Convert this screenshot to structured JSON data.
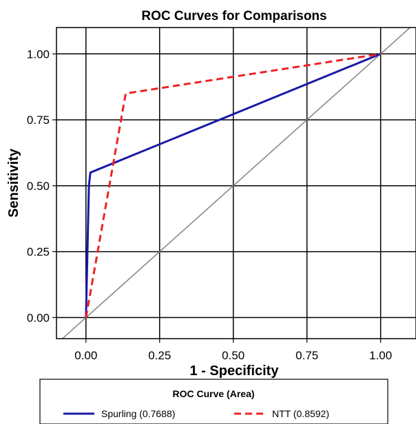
{
  "chart_data": {
    "type": "line",
    "title": "ROC Curves for Comparisons",
    "xlabel": "1 - Specificity",
    "ylabel": "Sensitivity",
    "xlim": [
      -0.1,
      1.12
    ],
    "ylim": [
      -0.08,
      1.1
    ],
    "xticks": [
      0.0,
      0.25,
      0.5,
      0.75,
      1.0
    ],
    "yticks": [
      0.0,
      0.25,
      0.5,
      0.75,
      1.0
    ],
    "xtick_labels": [
      "0.00",
      "0.25",
      "0.50",
      "0.75",
      "1.00"
    ],
    "ytick_labels": [
      "0.00",
      "0.25",
      "0.50",
      "0.75",
      "1.00"
    ],
    "grid": true,
    "legend": {
      "title": "ROC Curve (Area)",
      "placement": "bottom"
    },
    "reference_line": {
      "x": [
        -0.1,
        1.12
      ],
      "y": [
        -0.1,
        1.12
      ],
      "color": "#888888"
    },
    "series": [
      {
        "name": "Spurling (0.7688)",
        "color": "#1a1aa6",
        "dash": "solid",
        "x": [
          0.0,
          0.01,
          0.015,
          1.0
        ],
        "y": [
          0.0,
          0.5,
          0.55,
          1.0
        ]
      },
      {
        "name": "NTT (0.8592)",
        "color": "#ee2222",
        "dash": "dashed",
        "x": [
          0.0,
          0.135,
          1.0
        ],
        "y": [
          0.0,
          0.85,
          1.0
        ]
      }
    ]
  }
}
